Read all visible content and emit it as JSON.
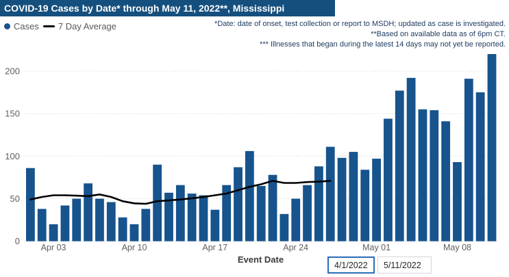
{
  "title": "COVID-19 Cases by Date* through May 11, 2022**, Mississippi",
  "legend": {
    "cases_label": "Cases",
    "avg_label": "7 Day Average"
  },
  "notes": [
    "*Date: date of onset, test collection or report to MSDH; updated as case is investigated.",
    "**Based on available data as of 6pm CT.",
    "*** Illnesses that began during the latest 14 days may not yet be reported."
  ],
  "colors": {
    "bar": "#17538d",
    "line": "#000000",
    "title_bg": "#154f7d",
    "note_text": "#1f3c61",
    "axis_text": "#605e5c",
    "gridline": "#cccccc",
    "legend_text": "#595959"
  },
  "date_filters": {
    "start": "4/1/2022",
    "end": "5/11/2022"
  },
  "chart_data": {
    "type": "bar",
    "title": "COVID-19 Cases by Date* through May 11, 2022**, Mississippi",
    "xlabel": "Event Date",
    "ylabel": "",
    "ylim": [
      0,
      230
    ],
    "grid": "horizontal dotted",
    "legend_position": "top-left",
    "x": [
      "Apr 01",
      "Apr 02",
      "Apr 03",
      "Apr 04",
      "Apr 05",
      "Apr 06",
      "Apr 07",
      "Apr 08",
      "Apr 09",
      "Apr 10",
      "Apr 11",
      "Apr 12",
      "Apr 13",
      "Apr 14",
      "Apr 15",
      "Apr 16",
      "Apr 17",
      "Apr 18",
      "Apr 19",
      "Apr 20",
      "Apr 21",
      "Apr 22",
      "Apr 23",
      "Apr 24",
      "Apr 25",
      "Apr 26",
      "Apr 27",
      "Apr 28",
      "Apr 29",
      "Apr 30",
      "May 01",
      "May 02",
      "May 03",
      "May 04",
      "May 05",
      "May 06",
      "May 07",
      "May 08",
      "May 09",
      "May 10",
      "May 11"
    ],
    "x_ticks": [
      "Apr 03",
      "Apr 10",
      "Apr 17",
      "Apr 24",
      "May 01",
      "May 08"
    ],
    "y_ticks": [
      0,
      50,
      100,
      150,
      200
    ],
    "series": [
      {
        "name": "Cases",
        "type": "bar",
        "values": [
          86,
          38,
          20,
          42,
          50,
          68,
          50,
          46,
          28,
          20,
          38,
          90,
          57,
          66,
          56,
          54,
          37,
          66,
          87,
          106,
          65,
          78,
          32,
          50,
          66,
          88,
          111,
          98,
          105,
          84,
          97,
          144,
          177,
          192,
          155,
          154,
          141,
          93,
          191,
          175,
          220
        ]
      },
      {
        "name": "7 Day Average",
        "type": "line",
        "values": [
          49,
          52,
          54,
          54,
          53.5,
          53,
          55,
          52,
          47,
          44.5,
          44,
          47,
          48,
          49,
          50.5,
          52,
          54,
          56,
          60,
          64,
          67,
          71,
          68.5,
          68.5,
          69.5,
          70,
          71,
          null,
          null,
          null,
          null,
          null,
          null,
          null,
          null,
          null,
          null,
          null,
          null,
          null,
          null
        ]
      }
    ]
  }
}
